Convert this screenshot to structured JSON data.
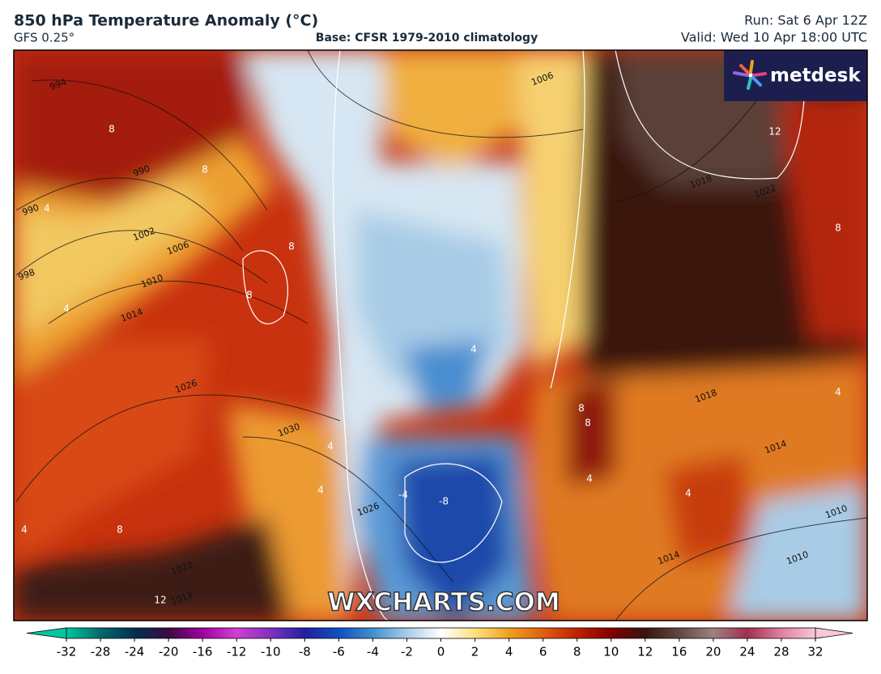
{
  "header": {
    "title": "850 hPa Temperature Anomaly (°C)",
    "model": "GFS 0.25°",
    "base": "Base: CFSR 1979-2010 climatology",
    "run": "Run: Sat 6 Apr 12Z",
    "valid": "Valid: Wed 10 Apr 18:00 UTC"
  },
  "logo": "metdesk",
  "watermark": "WXCHARTS.COM",
  "map": {
    "isobar_labels": [
      994,
      990,
      990,
      998,
      1002,
      1006,
      1010,
      1014,
      1026,
      1030,
      1026,
      1022,
      1018,
      1006,
      1018,
      1022,
      1018,
      1014,
      1010,
      1014,
      1010
    ],
    "anomaly_labels": [
      8,
      8,
      4,
      4,
      8,
      8,
      8,
      4,
      4,
      4,
      -4,
      -8,
      4,
      8,
      8,
      4,
      4,
      12,
      12,
      8,
      4
    ]
  },
  "colorbar": {
    "ticks": [
      -32,
      -28,
      -24,
      -20,
      -16,
      -12,
      -10,
      -8,
      -6,
      -4,
      -2,
      0,
      2,
      4,
      6,
      8,
      10,
      12,
      16,
      20,
      24,
      28,
      32
    ],
    "colors": [
      "#00c8a0",
      "#006a6a",
      "#003050",
      "#3a0a40",
      "#a000a0",
      "#d040d0",
      "#8030c0",
      "#2020a0",
      "#1050c0",
      "#4090d0",
      "#a8cce8",
      "#ffffff",
      "#ffe080",
      "#f0a020",
      "#e06010",
      "#c02000",
      "#800000",
      "#3a1410",
      "#604840",
      "#a08080",
      "#a03050",
      "#e080a0",
      "#f8c8d8"
    ]
  }
}
